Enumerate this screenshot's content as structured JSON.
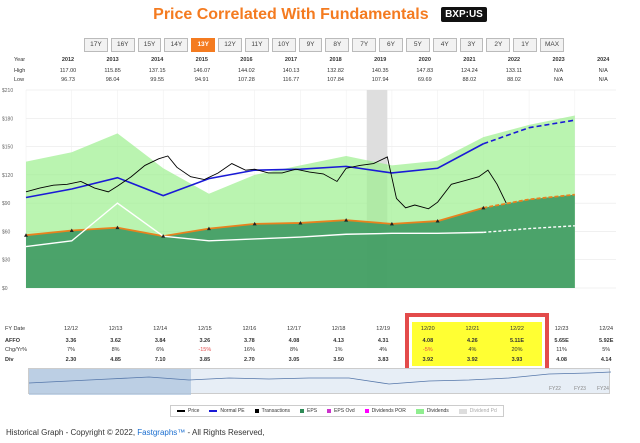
{
  "header": {
    "title": "Price Correlated With Fundamentals",
    "ticker": "BXP:US"
  },
  "range_buttons": [
    "17Y",
    "16Y",
    "15Y",
    "14Y",
    "13Y",
    "12Y",
    "11Y",
    "10Y",
    "9Y",
    "8Y",
    "7Y",
    "6Y",
    "5Y",
    "4Y",
    "3Y",
    "2Y",
    "1Y",
    "MAX"
  ],
  "selected_range": "13Y",
  "years_table": {
    "labels": [
      "Year",
      "High",
      "Low"
    ],
    "years": [
      "2012",
      "2013",
      "2014",
      "2015",
      "2016",
      "2017",
      "2018",
      "2019",
      "2020",
      "2021",
      "2022",
      "2023",
      "2024"
    ],
    "high": [
      "117.00",
      "115.85",
      "137.15",
      "146.07",
      "144.02",
      "140.13",
      "132.82",
      "140.35",
      "147.83",
      "124.24",
      "133.11",
      "N/A",
      "N/A"
    ],
    "low": [
      "96.73",
      "98.04",
      "99.55",
      "94.91",
      "107.28",
      "116.77",
      "107.84",
      "107.94",
      "69.69",
      "88.02",
      "88.02",
      "N/A",
      "N/A"
    ]
  },
  "bottom_table": {
    "labels": {
      "fy": "FY Date",
      "affo": "AFFO",
      "chg": "Chg/Yr%",
      "div": "Div"
    },
    "fy_dates": [
      "12/12",
      "12/13",
      "12/14",
      "12/15",
      "12/16",
      "12/17",
      "12/18",
      "12/19",
      "12/20",
      "12/21",
      "12/22",
      "12/23",
      "12/24"
    ],
    "affo": [
      "3.36",
      "3.62",
      "3.84",
      "3.26",
      "3.78",
      "4.08",
      "4.13",
      "4.31",
      "4.08",
      "4.26",
      "5.11E",
      "5.65E",
      "5.92E"
    ],
    "chg": [
      "7%",
      "8%",
      "6%",
      "-15%",
      "16%",
      "8%",
      "1%",
      "4%",
      "-5%",
      "4%",
      "20%",
      "11%",
      "5%"
    ],
    "div": [
      "2.30",
      "4.85",
      "7.10",
      "3.85",
      "2.70",
      "3.05",
      "3.50",
      "3.83",
      "3.92",
      "3.92",
      "3.93",
      "4.08",
      "4.14"
    ]
  },
  "legend": {
    "items": [
      "Price",
      "Normal PE",
      "Transactions",
      "EPS",
      "EPS Ovd",
      "Dividends POR",
      "Dividends",
      "Dividend Pd"
    ]
  },
  "footer": {
    "copyright_prefix": "Historical Graph - Copyright © 2022, ",
    "brand": "Fastgraphs™",
    "copyright_suffix": " - All Rights Reserved,"
  },
  "navigator_labels": [
    "FY22",
    "FY23",
    "FY24"
  ],
  "colors": {
    "accent": "#f47b20",
    "price": "#000000",
    "normal_pe": "#1a1ad6",
    "eps_area": "#2e8b57",
    "dividend_area": "#90ee90",
    "highlight_box": "#e34b4b",
    "highlight_fill": "#ffff33"
  },
  "chart_data": {
    "type": "area",
    "x_years": [
      2012,
      2013,
      2014,
      2015,
      2016,
      2017,
      2018,
      2019,
      2020,
      2021,
      2022,
      2023,
      2024
    ],
    "y_ticks": [
      "$0",
      "$30",
      "$60",
      "$90",
      "$120",
      "$150",
      "$180",
      "$210"
    ],
    "ylim": [
      0,
      210
    ],
    "normal_pe": [
      96.0,
      105.0,
      117.0,
      98.0,
      116.0,
      125.0,
      126.0,
      129.0,
      122.0,
      127.0,
      153.0,
      170.0,
      178.0
    ],
    "affo_area": [
      56.0,
      61.0,
      64.0,
      55.0,
      63.0,
      68.0,
      69.0,
      72.0,
      68.0,
      71.0,
      85.0,
      94.0,
      99.0
    ],
    "dividend_area": [
      134.0,
      144.0,
      164.0,
      127.0,
      100.0,
      120.0,
      130.0,
      140.0,
      130.0,
      135.0,
      160.0,
      173.0,
      183.0
    ],
    "white_line": [
      44.0,
      50.0,
      90.0,
      55.0,
      50.0,
      52.0,
      54.0,
      57.0,
      58.0,
      58.0,
      59.0,
      63.0,
      66.0
    ],
    "price": [
      [
        2012.0,
        102
      ],
      [
        2012.3,
        106
      ],
      [
        2012.6,
        109
      ],
      [
        2012.9,
        110
      ],
      [
        2013.2,
        113
      ],
      [
        2013.5,
        106
      ],
      [
        2013.8,
        102
      ],
      [
        2014.0,
        108
      ],
      [
        2014.3,
        118
      ],
      [
        2014.6,
        130
      ],
      [
        2014.9,
        137
      ],
      [
        2015.1,
        140
      ],
      [
        2015.3,
        128
      ],
      [
        2015.6,
        118
      ],
      [
        2015.9,
        115
      ],
      [
        2016.2,
        122
      ],
      [
        2016.5,
        132
      ],
      [
        2016.8,
        125
      ],
      [
        2017.0,
        126
      ],
      [
        2017.3,
        122
      ],
      [
        2017.6,
        122
      ],
      [
        2017.9,
        126
      ],
      [
        2018.2,
        123
      ],
      [
        2018.5,
        121
      ],
      [
        2018.8,
        113
      ],
      [
        2019.0,
        127
      ],
      [
        2019.3,
        130
      ],
      [
        2019.6,
        132
      ],
      [
        2019.9,
        139
      ],
      [
        2020.1,
        95
      ],
      [
        2020.3,
        85
      ],
      [
        2020.5,
        88
      ],
      [
        2020.8,
        84
      ],
      [
        2021.0,
        91
      ],
      [
        2021.3,
        110
      ],
      [
        2021.6,
        114
      ],
      [
        2021.9,
        118
      ],
      [
        2022.1,
        125
      ],
      [
        2022.3,
        110
      ],
      [
        2022.5,
        90
      ]
    ]
  }
}
